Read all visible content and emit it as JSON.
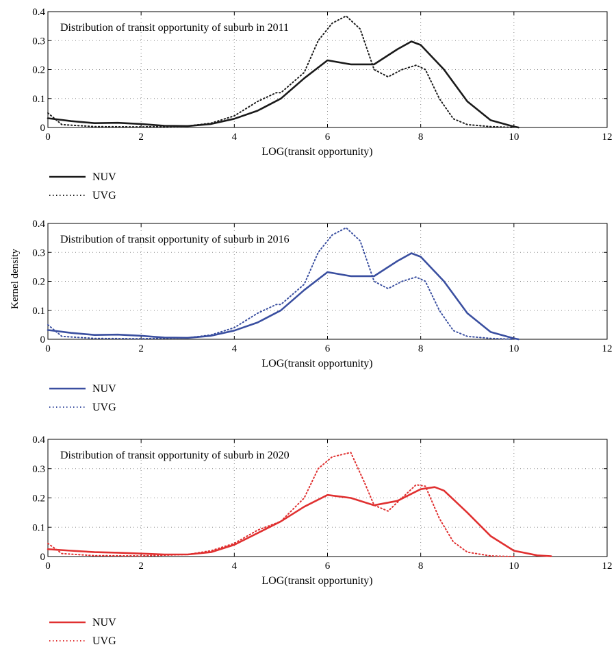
{
  "figure": {
    "shared_ylabel": "Kernel density"
  },
  "chart_data": [
    {
      "type": "line",
      "title": "Distribution of transit opportunity of suburb in 2011",
      "xlabel": "LOG(transit opportunity)",
      "ylabel": "",
      "xlim": [
        0,
        12
      ],
      "ylim": [
        0,
        0.4
      ],
      "xticks": [
        "0",
        "2",
        "4",
        "6",
        "8",
        "10",
        "12"
      ],
      "yticks": [
        "0",
        "0.1",
        "0.2",
        "0.3",
        "0.4"
      ],
      "grid": true,
      "legend_position": "below",
      "color": "#1a1a1a",
      "series": [
        {
          "name": "NUV",
          "style": "solid",
          "points": [
            [
              0,
              0.032
            ],
            [
              0.5,
              0.022
            ],
            [
              1,
              0.015
            ],
            [
              1.5,
              0.016
            ],
            [
              2,
              0.012
            ],
            [
              2.5,
              0.006
            ],
            [
              3,
              0.005
            ],
            [
              3.5,
              0.012
            ],
            [
              4,
              0.03
            ],
            [
              4.5,
              0.058
            ],
            [
              5,
              0.1
            ],
            [
              5.5,
              0.17
            ],
            [
              6,
              0.232
            ],
            [
              6.5,
              0.218
            ],
            [
              7,
              0.218
            ],
            [
              7.5,
              0.27
            ],
            [
              7.8,
              0.297
            ],
            [
              8,
              0.285
            ],
            [
              8.5,
              0.2
            ],
            [
              9,
              0.09
            ],
            [
              9.5,
              0.025
            ],
            [
              10,
              0.003
            ],
            [
              10.1,
              0.0
            ]
          ]
        },
        {
          "name": "UVG",
          "style": "dotted",
          "points": [
            [
              0,
              0.05
            ],
            [
              0.3,
              0.01
            ],
            [
              1,
              0.003
            ],
            [
              2,
              0.002
            ],
            [
              3,
              0.005
            ],
            [
              3.5,
              0.015
            ],
            [
              4,
              0.04
            ],
            [
              4.5,
              0.09
            ],
            [
              4.9,
              0.12
            ],
            [
              5,
              0.12
            ],
            [
              5.5,
              0.19
            ],
            [
              5.8,
              0.3
            ],
            [
              6.1,
              0.36
            ],
            [
              6.4,
              0.385
            ],
            [
              6.7,
              0.34
            ],
            [
              7,
              0.2
            ],
            [
              7.3,
              0.175
            ],
            [
              7.6,
              0.2
            ],
            [
              7.9,
              0.215
            ],
            [
              8.1,
              0.2
            ],
            [
              8.4,
              0.1
            ],
            [
              8.7,
              0.03
            ],
            [
              9,
              0.01
            ],
            [
              9.5,
              0.003
            ],
            [
              10,
              0.0
            ]
          ]
        }
      ]
    },
    {
      "type": "line",
      "title": "Distribution of transit opportunity of suburb in 2016",
      "xlabel": "LOG(transit opportunity)",
      "ylabel": "Kernel density",
      "xlim": [
        0,
        12
      ],
      "ylim": [
        0,
        0.4
      ],
      "xticks": [
        "0",
        "2",
        "4",
        "6",
        "8",
        "10",
        "12"
      ],
      "yticks": [
        "0",
        "0.1",
        "0.2",
        "0.3",
        "0.4"
      ],
      "grid": true,
      "legend_position": "below",
      "color": "#3a4fa0",
      "series": [
        {
          "name": "NUV",
          "style": "solid",
          "points": [
            [
              0,
              0.032
            ],
            [
              0.5,
              0.022
            ],
            [
              1,
              0.015
            ],
            [
              1.5,
              0.016
            ],
            [
              2,
              0.012
            ],
            [
              2.5,
              0.006
            ],
            [
              3,
              0.005
            ],
            [
              3.5,
              0.012
            ],
            [
              4,
              0.03
            ],
            [
              4.5,
              0.058
            ],
            [
              5,
              0.1
            ],
            [
              5.5,
              0.17
            ],
            [
              6,
              0.232
            ],
            [
              6.5,
              0.218
            ],
            [
              7,
              0.218
            ],
            [
              7.5,
              0.27
            ],
            [
              7.8,
              0.297
            ],
            [
              8,
              0.285
            ],
            [
              8.5,
              0.2
            ],
            [
              9,
              0.09
            ],
            [
              9.5,
              0.025
            ],
            [
              10,
              0.003
            ],
            [
              10.1,
              0.0
            ]
          ]
        },
        {
          "name": "UVG",
          "style": "dotted",
          "points": [
            [
              0,
              0.05
            ],
            [
              0.3,
              0.01
            ],
            [
              1,
              0.003
            ],
            [
              2,
              0.002
            ],
            [
              3,
              0.005
            ],
            [
              3.5,
              0.015
            ],
            [
              4,
              0.04
            ],
            [
              4.5,
              0.09
            ],
            [
              4.9,
              0.12
            ],
            [
              5,
              0.12
            ],
            [
              5.5,
              0.19
            ],
            [
              5.8,
              0.3
            ],
            [
              6.1,
              0.36
            ],
            [
              6.4,
              0.385
            ],
            [
              6.7,
              0.34
            ],
            [
              7,
              0.2
            ],
            [
              7.3,
              0.175
            ],
            [
              7.6,
              0.2
            ],
            [
              7.9,
              0.215
            ],
            [
              8.1,
              0.2
            ],
            [
              8.4,
              0.1
            ],
            [
              8.7,
              0.03
            ],
            [
              9,
              0.01
            ],
            [
              9.5,
              0.003
            ],
            [
              10,
              0.0
            ]
          ]
        }
      ]
    },
    {
      "type": "line",
      "title": "Distribution of transit opportunity of suburb in 2020",
      "xlabel": "LOG(transit opportunity)",
      "ylabel": "",
      "xlim": [
        0,
        12
      ],
      "ylim": [
        0,
        0.4
      ],
      "xticks": [
        "0",
        "2",
        "4",
        "6",
        "8",
        "10",
        "12"
      ],
      "yticks": [
        "0",
        "0.1",
        "0.2",
        "0.3",
        "0.4"
      ],
      "grid": true,
      "legend_position": "below",
      "color": "#e03030",
      "series": [
        {
          "name": "NUV",
          "style": "solid",
          "points": [
            [
              0,
              0.025
            ],
            [
              0.5,
              0.02
            ],
            [
              1,
              0.015
            ],
            [
              1.5,
              0.013
            ],
            [
              2,
              0.01
            ],
            [
              2.5,
              0.007
            ],
            [
              3,
              0.007
            ],
            [
              3.5,
              0.015
            ],
            [
              4,
              0.04
            ],
            [
              4.5,
              0.08
            ],
            [
              5,
              0.12
            ],
            [
              5.5,
              0.17
            ],
            [
              6,
              0.21
            ],
            [
              6.5,
              0.2
            ],
            [
              7,
              0.175
            ],
            [
              7.5,
              0.19
            ],
            [
              8,
              0.23
            ],
            [
              8.3,
              0.237
            ],
            [
              8.5,
              0.225
            ],
            [
              9,
              0.15
            ],
            [
              9.5,
              0.07
            ],
            [
              10,
              0.02
            ],
            [
              10.5,
              0.004
            ],
            [
              10.8,
              0.001
            ]
          ]
        },
        {
          "name": "UVG",
          "style": "dotted",
          "points": [
            [
              0,
              0.045
            ],
            [
              0.3,
              0.01
            ],
            [
              1,
              0.003
            ],
            [
              2,
              0.002
            ],
            [
              3,
              0.007
            ],
            [
              3.5,
              0.02
            ],
            [
              4,
              0.045
            ],
            [
              4.5,
              0.09
            ],
            [
              5,
              0.12
            ],
            [
              5.5,
              0.2
            ],
            [
              5.8,
              0.3
            ],
            [
              6.1,
              0.34
            ],
            [
              6.5,
              0.355
            ],
            [
              6.8,
              0.25
            ],
            [
              7,
              0.175
            ],
            [
              7.3,
              0.155
            ],
            [
              7.6,
              0.2
            ],
            [
              7.9,
              0.245
            ],
            [
              8.1,
              0.24
            ],
            [
              8.4,
              0.13
            ],
            [
              8.7,
              0.05
            ],
            [
              9,
              0.015
            ],
            [
              9.5,
              0.002
            ],
            [
              10,
              0.0
            ]
          ]
        }
      ]
    }
  ]
}
